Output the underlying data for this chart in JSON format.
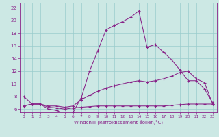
{
  "xlabel": "Windchill (Refroidissement éolien,°C)",
  "xlim": [
    -0.5,
    23.5
  ],
  "ylim": [
    5.5,
    22.8
  ],
  "xtick_labels": [
    "0",
    "1",
    "2",
    "3",
    "4",
    "5",
    "6",
    "7",
    "8",
    "9",
    "10",
    "11",
    "12",
    "13",
    "14",
    "15",
    "16",
    "17",
    "18",
    "19",
    "20",
    "21",
    "22",
    "23"
  ],
  "xticks": [
    0,
    1,
    2,
    3,
    4,
    5,
    6,
    7,
    8,
    9,
    10,
    11,
    12,
    13,
    14,
    15,
    16,
    17,
    18,
    19,
    20,
    21,
    22,
    23
  ],
  "yticks": [
    6,
    8,
    10,
    12,
    14,
    16,
    18,
    20,
    22
  ],
  "bg_color": "#cce8e4",
  "grid_color": "#99cccc",
  "line_color": "#882288",
  "line1_x": [
    0,
    1,
    2,
    3,
    4,
    5,
    6,
    7,
    8,
    9,
    10,
    11,
    12,
    13,
    14,
    15,
    16,
    17,
    18,
    19,
    20,
    21,
    22,
    23
  ],
  "line1_y": [
    8.0,
    6.8,
    6.8,
    6.0,
    5.8,
    5.2,
    5.5,
    7.8,
    12.0,
    15.2,
    18.5,
    19.2,
    19.8,
    20.5,
    21.5,
    15.8,
    16.2,
    15.0,
    13.8,
    12.2,
    10.5,
    10.5,
    9.2,
    7.0
  ],
  "line2_x": [
    0,
    1,
    2,
    3,
    4,
    5,
    6,
    7,
    8,
    9,
    10,
    11,
    12,
    13,
    14,
    15,
    16,
    17,
    18,
    19,
    20,
    21,
    22,
    23
  ],
  "line2_y": [
    6.5,
    6.8,
    6.8,
    6.5,
    6.5,
    6.3,
    6.5,
    7.5,
    8.2,
    8.8,
    9.3,
    9.7,
    10.0,
    10.3,
    10.5,
    10.3,
    10.5,
    10.8,
    11.2,
    11.8,
    12.0,
    10.8,
    10.2,
    6.8
  ],
  "line3_x": [
    0,
    1,
    2,
    3,
    4,
    5,
    6,
    7,
    8,
    9,
    10,
    11,
    12,
    13,
    14,
    15,
    16,
    17,
    18,
    19,
    20,
    21,
    22,
    23
  ],
  "line3_y": [
    6.5,
    6.8,
    6.8,
    6.3,
    6.2,
    6.0,
    6.2,
    6.3,
    6.4,
    6.5,
    6.5,
    6.5,
    6.5,
    6.5,
    6.5,
    6.5,
    6.5,
    6.5,
    6.6,
    6.7,
    6.8,
    6.8,
    6.8,
    6.8
  ]
}
